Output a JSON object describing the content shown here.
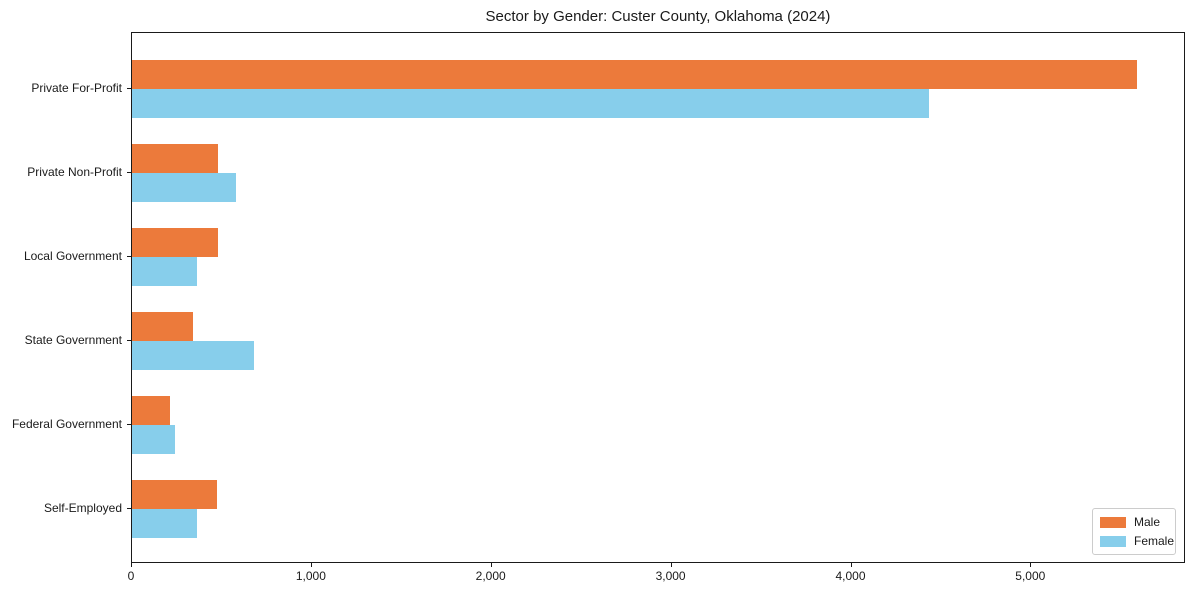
{
  "chart_data": {
    "type": "bar",
    "orientation": "horizontal",
    "title": "Sector by Gender: Custer County, Oklahoma (2024)",
    "categories": [
      "Private For-Profit",
      "Private Non-Profit",
      "Local Government",
      "State Government",
      "Federal Government",
      "Self-Employed"
    ],
    "series": [
      {
        "name": "Male",
        "color": "#EC7A3B",
        "values": [
          5590,
          480,
          480,
          340,
          210,
          470
        ]
      },
      {
        "name": "Female",
        "color": "#87CEEB",
        "values": [
          4430,
          580,
          360,
          680,
          240,
          360
        ]
      }
    ],
    "xlabel": "",
    "ylabel": "",
    "xlim": [
      0,
      5860
    ],
    "x_ticks": [
      0,
      1000,
      2000,
      3000,
      4000,
      5000
    ],
    "x_tick_labels": [
      "0",
      "1,000",
      "2,000",
      "3,000",
      "4,000",
      "5,000"
    ],
    "grid": false,
    "legend": {
      "position": "lower-right"
    }
  }
}
